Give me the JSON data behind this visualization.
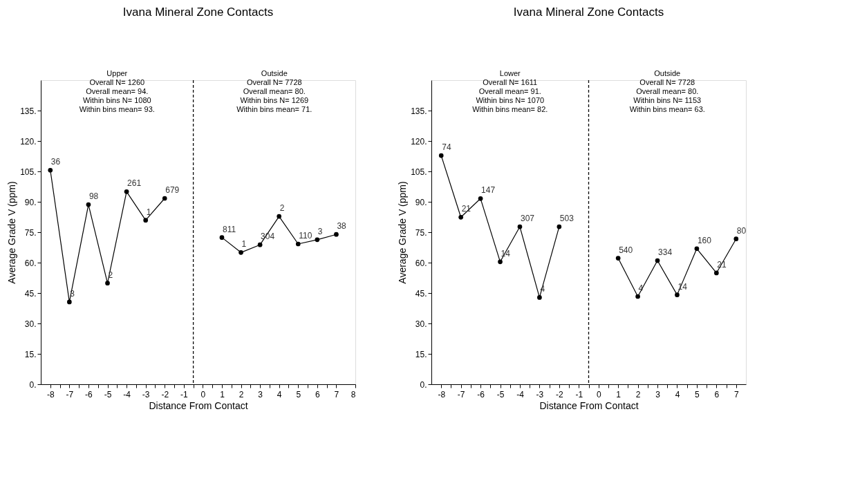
{
  "chart_data": [
    {
      "type": "line",
      "title": "Ivana Mineral Zone Contacts",
      "xlabel": "Distance From Contact",
      "ylabel": "Average Grade V (ppm)",
      "annotations": [
        "Upper\nOverall N= 1260\nOverall mean= 94.\nWithin bins N= 1080\nWithin bins mean= 93.",
        "Outside\nOverall N= 7728\nOverall mean= 80.\nWithin bins N= 1269\nWithin bins mean= 71.",
        {
          "text": "36",
          "x": -8,
          "y": 105.6
        },
        {
          "text": "3",
          "x": -7,
          "y": 40.6
        },
        {
          "text": "98",
          "x": -6,
          "y": 88.6
        },
        {
          "text": "2",
          "x": -5,
          "y": 49.9
        },
        {
          "text": "261",
          "x": -4,
          "y": 95.0
        },
        {
          "text": "1",
          "x": -3,
          "y": 80.9
        },
        {
          "text": "679",
          "x": -2,
          "y": 91.7
        },
        {
          "text": "811",
          "x": 1,
          "y": 72.4
        },
        {
          "text": "1",
          "x": 2,
          "y": 65.0
        },
        {
          "text": "304",
          "x": 3,
          "y": 68.8
        },
        {
          "text": "2",
          "x": 4,
          "y": 82.8
        },
        {
          "text": "110",
          "x": 5,
          "y": 69.2
        },
        {
          "text": "3",
          "x": 6,
          "y": 71.3
        },
        {
          "text": "38",
          "x": 7,
          "y": 73.9
        }
      ],
      "series": [
        {
          "color": "#000000",
          "x": [
            -8,
            -7,
            -6,
            -5,
            -4,
            -3,
            -2
          ],
          "values": [
            105.6,
            40.6,
            88.6,
            49.9,
            95.0,
            80.9,
            91.7
          ]
        },
        {
          "color": "#000000",
          "x": [
            1,
            2,
            3,
            4,
            5,
            6,
            7
          ],
          "values": [
            72.4,
            65.0,
            68.8,
            82.8,
            69.2,
            71.3,
            73.9
          ]
        }
      ],
      "marker": "circle",
      "line_style": "solid",
      "grid": false,
      "xlim": [
        -8.5,
        8
      ],
      "xticks": [
        -8,
        {
          "value": -7.5,
          "label": null
        },
        -7,
        {
          "value": -6.5,
          "label": null
        },
        -6,
        {
          "value": -5.5,
          "label": null
        },
        -5,
        {
          "value": -4.5,
          "label": null
        },
        -4,
        {
          "value": -3.5,
          "label": null
        },
        -3,
        {
          "value": -2.5,
          "label": null
        },
        -2,
        {
          "value": -1.5,
          "label": null
        },
        -1,
        {
          "value": -0.5,
          "label": null
        },
        0,
        {
          "value": 0.5,
          "label": null
        },
        1,
        {
          "value": 1.5,
          "label": null
        },
        2,
        {
          "value": 2.5,
          "label": null
        },
        3,
        {
          "value": 3.5,
          "label": null
        },
        4,
        {
          "value": 4.5,
          "label": null
        },
        5,
        {
          "value": 5.5,
          "label": null
        },
        6,
        {
          "value": 6.5,
          "label": null
        },
        7,
        8
      ],
      "ylim": [
        0,
        150
      ],
      "yticks": [
        {
          "value": 0,
          "label": "0."
        },
        {
          "value": 15,
          "label": "15."
        },
        {
          "value": 30,
          "label": "30."
        },
        {
          "value": 45,
          "label": "45."
        },
        {
          "value": 60,
          "label": "60."
        },
        {
          "value": 75,
          "label": "75."
        },
        {
          "value": 90,
          "label": "90."
        },
        {
          "value": 105,
          "label": "105."
        },
        {
          "value": 120,
          "label": "120."
        },
        {
          "value": 135,
          "label": "135."
        }
      ],
      "ref_lines": [
        {
          "axis": "x",
          "value": -0.5,
          "color": "#000000",
          "line_style": "dashed"
        }
      ]
    },
    {
      "type": "line",
      "title": "Ivana Mineral Zone Contacts",
      "xlabel": "Distance From Contact",
      "ylabel": "Average Grade V (ppm)",
      "annotations": [
        "Lower\nOverall N= 1611\nOverall mean= 91.\nWithin bins N= 1070\nWithin bins mean= 82.",
        "Outside\nOverall N= 7728\nOverall mean= 80.\nWithin bins N= 1153\nWithin bins mean= 63.",
        {
          "text": "74",
          "x": -8,
          "y": 112.8
        },
        {
          "text": "21",
          "x": -7,
          "y": 82.4
        },
        {
          "text": "147",
          "x": -6,
          "y": 91.6
        },
        {
          "text": "14",
          "x": -5,
          "y": 60.4
        },
        {
          "text": "307",
          "x": -4,
          "y": 77.7
        },
        {
          "text": "4",
          "x": -3,
          "y": 42.8
        },
        {
          "text": "503",
          "x": -2,
          "y": 77.7
        },
        {
          "text": "540",
          "x": 1,
          "y": 62.2
        },
        {
          "text": "4",
          "x": 2,
          "y": 43.3
        },
        {
          "text": "334",
          "x": 3,
          "y": 61.0
        },
        {
          "text": "14",
          "x": 4,
          "y": 44.1
        },
        {
          "text": "160",
          "x": 5,
          "y": 66.9
        },
        {
          "text": "21",
          "x": 6,
          "y": 54.9
        },
        {
          "text": "80",
          "x": 7,
          "y": 71.7
        }
      ],
      "series": [
        {
          "color": "#000000",
          "x": [
            -8,
            -7,
            -6,
            -5,
            -4,
            -3,
            -2
          ],
          "values": [
            112.8,
            82.4,
            91.6,
            60.4,
            77.7,
            42.8,
            77.7
          ]
        },
        {
          "color": "#000000",
          "x": [
            1,
            2,
            3,
            4,
            5,
            6,
            7
          ],
          "values": [
            62.2,
            43.3,
            61.0,
            44.1,
            66.9,
            54.9,
            71.7
          ]
        }
      ],
      "marker": "circle",
      "line_style": "solid",
      "grid": false,
      "xlim": [
        -8.5,
        7.5
      ],
      "xticks": [
        -8,
        {
          "value": -7.5,
          "label": null
        },
        -7,
        {
          "value": -6.5,
          "label": null
        },
        -6,
        {
          "value": -5.5,
          "label": null
        },
        -5,
        {
          "value": -4.5,
          "label": null
        },
        -4,
        {
          "value": -3.5,
          "label": null
        },
        -3,
        {
          "value": -2.5,
          "label": null
        },
        -2,
        {
          "value": -1.5,
          "label": null
        },
        -1,
        {
          "value": -0.5,
          "label": null
        },
        0,
        {
          "value": 0.5,
          "label": null
        },
        1,
        {
          "value": 1.5,
          "label": null
        },
        2,
        {
          "value": 2.5,
          "label": null
        },
        3,
        {
          "value": 3.5,
          "label": null
        },
        4,
        {
          "value": 4.5,
          "label": null
        },
        5,
        {
          "value": 5.5,
          "label": null
        },
        6,
        {
          "value": 6.5,
          "label": null
        },
        7
      ],
      "ylim": [
        0,
        150
      ],
      "yticks": [
        {
          "value": 0,
          "label": "0."
        },
        {
          "value": 15,
          "label": "15."
        },
        {
          "value": 30,
          "label": "30."
        },
        {
          "value": 45,
          "label": "45."
        },
        {
          "value": 60,
          "label": "60."
        },
        {
          "value": 75,
          "label": "75."
        },
        {
          "value": 90,
          "label": "90."
        },
        {
          "value": 105,
          "label": "105."
        },
        {
          "value": 120,
          "label": "120."
        },
        {
          "value": 135,
          "label": "135."
        }
      ],
      "ref_lines": [
        {
          "axis": "x",
          "value": -0.5,
          "color": "#000000",
          "line_style": "dashed"
        }
      ]
    }
  ]
}
